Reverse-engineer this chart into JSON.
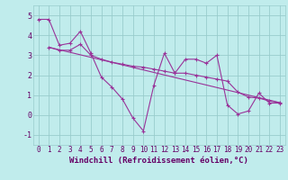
{
  "xlabel": "Windchill (Refroidissement éolien,°C)",
  "bg_color": "#c0ecec",
  "grid_color": "#99cccc",
  "line_color": "#993399",
  "text_color": "#660066",
  "axis_color": "#660066",
  "xlim": [
    -0.5,
    23.5
  ],
  "ylim": [
    -1.5,
    5.5
  ],
  "yticks": [
    -1,
    0,
    1,
    2,
    3,
    4,
    5
  ],
  "xticks": [
    0,
    1,
    2,
    3,
    4,
    5,
    6,
    7,
    8,
    9,
    10,
    11,
    12,
    13,
    14,
    15,
    16,
    17,
    18,
    19,
    20,
    21,
    22,
    23
  ],
  "series1_x": [
    0,
    1,
    2,
    3,
    4,
    5,
    6,
    7,
    8,
    9,
    10,
    11,
    12,
    13,
    14,
    15,
    16,
    17,
    18,
    19,
    20,
    21,
    22,
    23
  ],
  "series1_y": [
    4.8,
    4.8,
    3.5,
    3.6,
    4.2,
    3.1,
    1.9,
    1.4,
    0.8,
    -0.15,
    -0.8,
    1.5,
    3.1,
    2.1,
    2.8,
    2.8,
    2.6,
    3.0,
    0.5,
    0.05,
    0.2,
    1.1,
    0.6,
    0.6
  ],
  "series2_x": [
    1,
    2,
    3,
    4,
    5,
    6,
    7,
    8,
    9,
    10,
    11,
    12,
    13,
    14,
    15,
    16,
    17,
    18,
    19,
    20,
    21,
    22,
    23
  ],
  "series2_y": [
    3.4,
    3.25,
    3.25,
    3.55,
    3.0,
    2.8,
    2.65,
    2.55,
    2.45,
    2.4,
    2.3,
    2.2,
    2.1,
    2.1,
    2.0,
    1.9,
    1.8,
    1.7,
    1.15,
    0.9,
    0.85,
    0.7,
    0.62
  ],
  "series3_x": [
    1,
    23
  ],
  "series3_y": [
    3.4,
    0.62
  ],
  "xlabel_fontsize": 6.5,
  "tick_fontsize": 5.5
}
